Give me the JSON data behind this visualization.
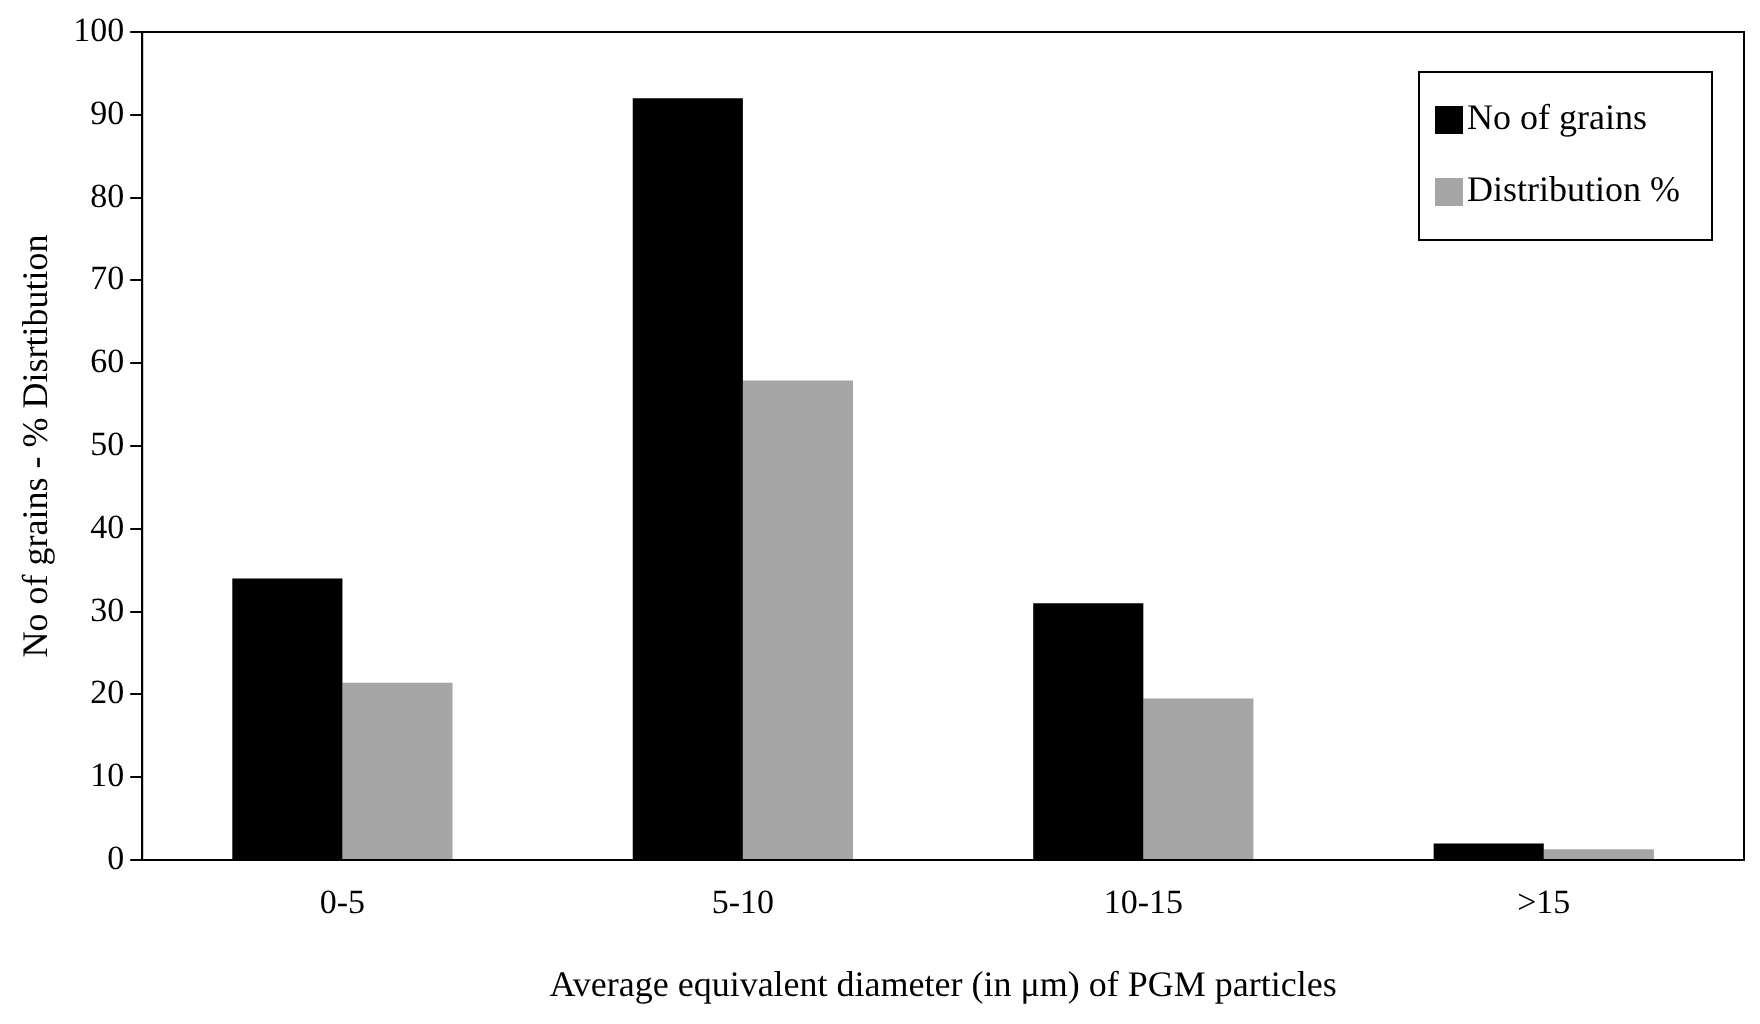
{
  "chart_data": {
    "type": "bar",
    "xlabel": "Average equivalent diameter (in μm) of PGM particles",
    "ylabel": "No of grains - % Disrtibution",
    "categories": [
      "0-5",
      "5-10",
      "10-15",
      ">15"
    ],
    "series": [
      {
        "name": "No of grains",
        "color": "#000000",
        "values": [
          34,
          92,
          31,
          2
        ]
      },
      {
        "name": "Distribution %",
        "color": "#a6a6a6",
        "values": [
          21.4,
          57.9,
          19.5,
          1.3
        ]
      }
    ],
    "ylim": [
      0,
      100
    ],
    "yticks": [
      0,
      10,
      20,
      30,
      40,
      50,
      60,
      70,
      80,
      90,
      100
    ],
    "grid": false,
    "legend": "top right"
  }
}
